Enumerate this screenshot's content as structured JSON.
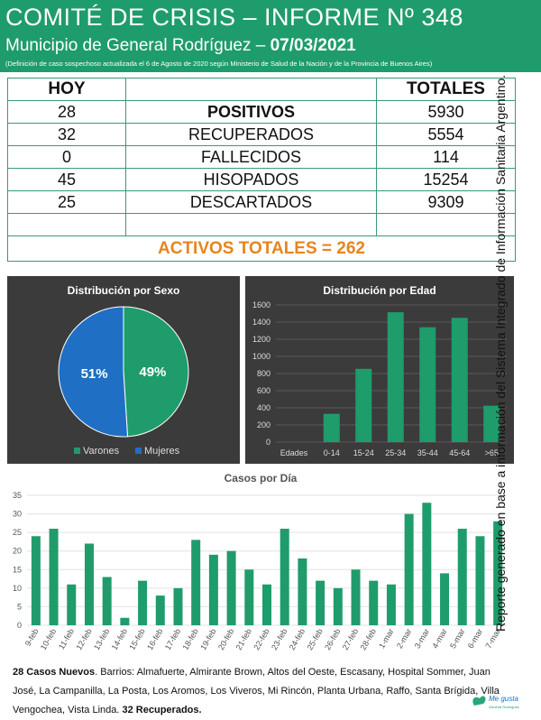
{
  "header": {
    "title": "COMITÉ DE CRISIS – INFORME Nº 348",
    "subtitle": "Municipio de General Rodríguez – ",
    "date": "07/03/2021",
    "note": "(Definición de caso sospechoso actualizada el 6 de Agosto de 2020 según Ministerio de Salud de la Nación y de la Provincia de Buenos Aires)"
  },
  "table": {
    "col_today": "HOY",
    "col_total": "TOTALES",
    "rows": [
      {
        "today": "28",
        "label": "POSITIVOS",
        "total": "5930"
      },
      {
        "today": "32",
        "label": "RECUPERADOS",
        "total": "5554"
      },
      {
        "today": "0",
        "label": "FALLECIDOS",
        "total": "114"
      },
      {
        "today": "45",
        "label": "HISOPADOS",
        "total": "15254"
      },
      {
        "today": "25",
        "label": "DESCARTADOS",
        "total": "9309"
      }
    ],
    "activos": "ACTIVOS TOTALES = 262"
  },
  "side_text": "Reporte generado en base a información del Sistema Integrado de Información Sanitaria Argentino.",
  "footer": {
    "new_cases": "28 Casos Nuevos",
    "barrios": ". Barrios: Almafuerte, Almirante Brown, Altos del Oeste, Escasany, Hospital Sommer, Juan José, La Campanilla, La Posta, Los Aromos, Los Viveros, Mi Rincón, Planta Urbana, Raffo, Santa Brígida, Villa Vengochea, Vista Linda. ",
    "recovered": "32 Recuperados."
  },
  "logo": {
    "line1": "Me gusta",
    "line2": "General Rodríguez"
  },
  "colors": {
    "green": "#1f9c6b",
    "blue": "#1f6fc4",
    "dark": "#3b3b3b",
    "orange": "#e8841c"
  },
  "chart_data": [
    {
      "type": "pie",
      "title": "Distribución por Sexo",
      "labels": [
        "Varones",
        "Mujeres"
      ],
      "values": [
        49,
        51
      ],
      "value_labels": [
        "49%",
        "51%"
      ],
      "colors": [
        "#1f9c6b",
        "#1f6fc4"
      ],
      "legend": "bottom"
    },
    {
      "type": "bar",
      "title": "Distribución por Edad",
      "axis_label": "Edades",
      "categories": [
        "0-14",
        "15-24",
        "25-34",
        "35-44",
        "45-64",
        ">65"
      ],
      "values": [
        330,
        855,
        1515,
        1340,
        1450,
        425
      ],
      "ylim": [
        0,
        1600
      ],
      "yticks": [
        0,
        200,
        400,
        600,
        800,
        1000,
        1200,
        1400,
        1600
      ],
      "grid": true
    },
    {
      "type": "bar",
      "title": "Casos por Día",
      "categories": [
        "9-feb",
        "10-feb",
        "11-feb",
        "12-feb",
        "13-feb",
        "14-feb",
        "15-feb",
        "16-feb",
        "17-feb",
        "18-feb",
        "19-feb",
        "20-feb",
        "21-feb",
        "22-feb",
        "23-feb",
        "24-feb",
        "25-feb",
        "26-feb",
        "27-feb",
        "28-feb",
        "1-mar",
        "2-mar",
        "3-mar",
        "4-mar",
        "5-mar",
        "6-mar",
        "7-mar"
      ],
      "values": [
        24,
        26,
        11,
        22,
        13,
        2,
        12,
        8,
        10,
        23,
        19,
        20,
        15,
        11,
        26,
        18,
        12,
        10,
        15,
        12,
        11,
        30,
        33,
        14,
        26,
        24,
        28
      ],
      "ylim": [
        0,
        35
      ],
      "yticks": [
        0,
        5,
        10,
        15,
        20,
        25,
        30,
        35
      ],
      "grid": true
    }
  ]
}
